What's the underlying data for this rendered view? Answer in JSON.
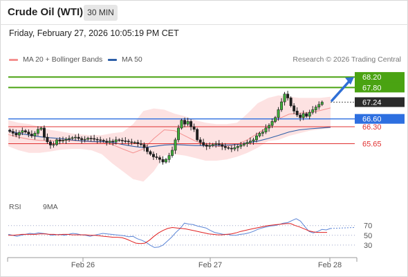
{
  "header": {
    "title": "Crude Oil (WTI)",
    "timeframe": "30 MIN"
  },
  "datetime": "Friday, February 27, 2026 10:05:19 PM CET",
  "legend": {
    "ma20": {
      "label": "MA 20 + Bollinger Bands",
      "color": "#f4908f"
    },
    "ma50": {
      "label": "MA 50",
      "color": "#2d5fa8"
    }
  },
  "credit": "Research © 2026 Trading Central",
  "rsi_legend": {
    "rsi": {
      "label": "RSI",
      "color": "#5b85d6"
    },
    "ma9": {
      "label": "9MA",
      "color": "#e02020"
    }
  },
  "chart_data": [
    {
      "type": "candlestick",
      "x_tick_labels": [
        "Feb 26",
        "Feb 27",
        "Feb 28"
      ],
      "price_levels": [
        {
          "label": "68.20",
          "value": 68.2,
          "kind": "resistance",
          "color": "#4aa312"
        },
        {
          "label": "67.80",
          "value": 67.8,
          "kind": "resistance",
          "color": "#4aa312"
        },
        {
          "label": "67.24",
          "value": 67.24,
          "kind": "last",
          "color": "#2b2b2b"
        },
        {
          "label": "66.60",
          "value": 66.6,
          "kind": "pivot",
          "color": "#2d6fe0"
        },
        {
          "label": "66.30",
          "value": 66.3,
          "kind": "support",
          "color": "#e03030"
        },
        {
          "label": "65.65",
          "value": 65.65,
          "kind": "support",
          "color": "#e03030"
        }
      ],
      "close": [
        66.12,
        66.05,
        65.98,
        66.08,
        66.15,
        66.1,
        66.02,
        65.95,
        66.05,
        66.2,
        66.25,
        65.9,
        65.72,
        65.6,
        65.62,
        65.8,
        65.75,
        65.78,
        65.82,
        65.85,
        65.88,
        65.9,
        65.85,
        65.8,
        65.82,
        65.86,
        65.85,
        65.82,
        65.8,
        65.78,
        65.75,
        65.7,
        65.75,
        65.72,
        65.8,
        65.78,
        65.76,
        65.75,
        65.72,
        65.7,
        65.7,
        65.65,
        65.62,
        65.5,
        65.35,
        65.25,
        65.15,
        65.12,
        65.05,
        64.95,
        65.05,
        65.2,
        65.4,
        65.8,
        66.25,
        66.55,
        66.4,
        66.5,
        66.3,
        66.2,
        65.8,
        65.7,
        65.6,
        65.55,
        65.58,
        65.62,
        65.65,
        65.62,
        65.55,
        65.5,
        65.48,
        65.45,
        65.5,
        65.55,
        65.6,
        65.65,
        65.7,
        65.75,
        65.8,
        65.95,
        66.05,
        66.1,
        66.25,
        66.35,
        66.5,
        66.65,
        66.95,
        67.25,
        67.55,
        67.4,
        67.1,
        66.9,
        66.75,
        66.65,
        66.8,
        66.7,
        66.85,
        66.95,
        67.05,
        67.15,
        67.24
      ],
      "ma20": [
        66.0,
        65.9,
        65.82,
        65.78,
        65.76,
        65.78,
        65.78,
        65.75,
        65.72,
        65.7,
        65.62,
        65.45,
        65.3,
        65.45,
        65.85,
        66.18,
        66.15,
        65.95,
        65.75,
        65.62,
        65.55,
        65.55,
        65.62,
        65.8,
        66.05,
        66.3,
        66.6,
        66.78,
        66.82,
        66.85,
        66.92,
        67.02
      ],
      "ma50": [
        66.15,
        66.05,
        65.98,
        65.92,
        65.88,
        65.85,
        65.8,
        65.76,
        65.74,
        65.73,
        65.7,
        65.62,
        65.55,
        65.5,
        65.55,
        65.6,
        65.62,
        65.6,
        65.58,
        65.58,
        65.58,
        65.6,
        65.62,
        65.68,
        65.75,
        65.85,
        65.97,
        66.1,
        66.18,
        66.22,
        66.25,
        66.28
      ],
      "bb_upper": [
        66.55,
        66.45,
        66.4,
        66.3,
        66.18,
        66.12,
        66.05,
        66.0,
        65.98,
        65.98,
        66.05,
        66.1,
        66.4,
        66.9,
        67.0,
        66.95,
        66.8,
        66.7,
        66.55,
        66.45,
        66.4,
        66.4,
        66.45,
        66.8,
        67.2,
        67.4,
        67.5,
        67.45,
        67.4,
        67.4,
        67.4,
        67.45
      ],
      "bb_lower": [
        65.55,
        65.4,
        65.3,
        65.3,
        65.35,
        65.42,
        65.45,
        65.45,
        65.4,
        65.25,
        64.9,
        64.6,
        64.3,
        64.2,
        64.6,
        65.2,
        65.25,
        65.2,
        65.1,
        65.0,
        65.0,
        65.05,
        65.15,
        65.3,
        65.5,
        65.75,
        65.8,
        65.95,
        66.05,
        66.15,
        66.2,
        66.25
      ],
      "ylim": [
        64.05,
        68.55
      ]
    },
    {
      "type": "line",
      "name": "RSI",
      "y_tick_labels": [
        "70",
        "50",
        "30"
      ],
      "y_ticks": [
        70,
        50,
        30
      ],
      "ylim": [
        10,
        88
      ],
      "rsi": [
        52,
        50,
        48,
        50,
        52,
        54,
        53,
        55,
        54,
        53,
        50,
        51,
        52,
        50,
        52,
        54,
        53,
        51,
        50,
        48,
        50,
        52,
        54,
        53,
        52,
        51,
        50,
        49,
        47,
        48,
        43,
        40,
        36,
        30,
        25,
        26,
        30,
        38,
        46,
        56,
        64,
        75,
        73,
        72,
        69,
        67,
        65,
        60,
        56,
        54,
        52,
        52,
        50,
        50,
        52,
        53,
        55,
        58,
        62,
        65,
        67,
        69,
        70,
        72,
        75,
        76,
        80,
        84,
        79,
        68,
        58,
        55,
        58,
        62,
        61,
        64
      ],
      "ma9": [
        50,
        50,
        51,
        52,
        52,
        52,
        52,
        53,
        53,
        52,
        52,
        51,
        52,
        52,
        51,
        51,
        51,
        51,
        50,
        50,
        49,
        48,
        47,
        46,
        46,
        45,
        42,
        38,
        34,
        33,
        34,
        40,
        48,
        55,
        60,
        64,
        66,
        65,
        64,
        63,
        61,
        59,
        57,
        55,
        53,
        52,
        51,
        51,
        52,
        53,
        55,
        58,
        60,
        62,
        64,
        66,
        68,
        70,
        71,
        72,
        73,
        74,
        74,
        70,
        67,
        63,
        59,
        57,
        56,
        56,
        56
      ]
    }
  ]
}
